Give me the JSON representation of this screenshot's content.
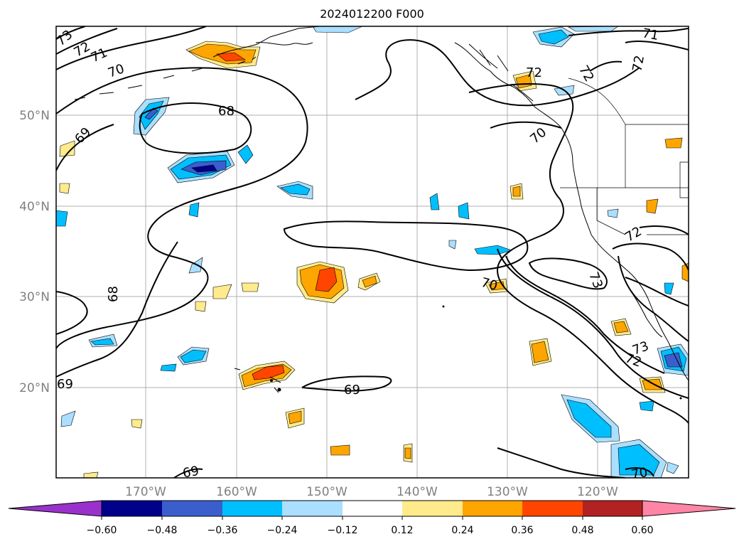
{
  "title": "2024012200 F000",
  "lat_labels": [
    "50°N",
    "40°N",
    "30°N",
    "20°N"
  ],
  "lon_labels": [
    "170°W",
    "160°W",
    "150°W",
    "140°W",
    "130°W",
    "120°W"
  ],
  "contour_labels": [
    "73",
    "72",
    "71",
    "70",
    "68",
    "69",
    "69",
    "68",
    "69",
    "69",
    "69",
    "70",
    "72",
    "72",
    "72",
    "71",
    "70",
    "70",
    "72",
    "73",
    "73",
    "72",
    "70"
  ],
  "colorbar": {
    "ticks": [
      "−0.60",
      "−0.48",
      "−0.36",
      "−0.24",
      "−0.12",
      "0.12",
      "0.24",
      "0.36",
      "0.48",
      "0.60"
    ],
    "colors": [
      "#9932cc",
      "#00008b",
      "#3a5fcd",
      "#00bfff",
      "#aadfff",
      "#ffffff",
      "#ffeb8c",
      "#ffa500",
      "#ff4500",
      "#b22222",
      "#ff85a6"
    ]
  }
}
